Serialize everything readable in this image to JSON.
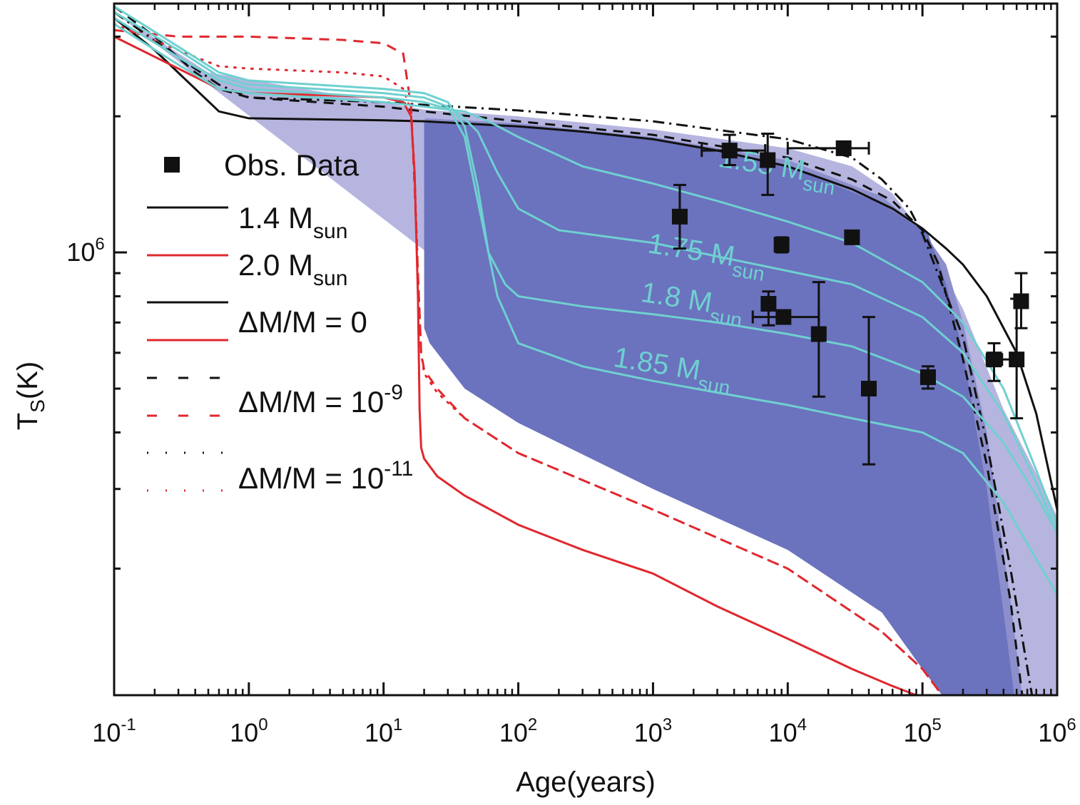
{
  "chart_data": {
    "type": "line",
    "title": "",
    "xlabel": "Age(years)",
    "ylabel_main": "T",
    "ylabel_sub": "S",
    "ylabel_unit": "(K)",
    "xscale": "log",
    "yscale": "log",
    "xlim": [
      0.1,
      1000000
    ],
    "ylim": [
      105000,
      3550000
    ],
    "grid": false,
    "legend_position": "left",
    "x_ticks": [
      {
        "value": 0.1,
        "base": "10",
        "exp": "-1"
      },
      {
        "value": 1,
        "base": "10",
        "exp": "0"
      },
      {
        "value": 10,
        "base": "10",
        "exp": "1"
      },
      {
        "value": 100,
        "base": "10",
        "exp": "2"
      },
      {
        "value": 1000,
        "base": "10",
        "exp": "3"
      },
      {
        "value": 10000,
        "base": "10",
        "exp": "4"
      },
      {
        "value": 100000,
        "base": "10",
        "exp": "5"
      },
      {
        "value": 1000000,
        "base": "10",
        "exp": "6"
      }
    ],
    "y_ticks": [
      {
        "value": 1000000,
        "base": "10",
        "exp": "6"
      }
    ],
    "colors": {
      "black": "#111111",
      "red": "#e0282e",
      "cyan": "#6fd0d0",
      "band_dark": "#6b72be",
      "band_mid": "#8c8fcc",
      "band_light": "#b6b5e0"
    },
    "legend": [
      {
        "label": "Obs. Data",
        "sub": "",
        "marker": "square",
        "color": "#111111",
        "dash": ""
      },
      {
        "label": "1.4 M",
        "sub": "sun",
        "color": "#111111",
        "dash": "solid"
      },
      {
        "label": "2.0 M",
        "sub": "sun",
        "color": "#e0282e",
        "dash": "solid"
      },
      {
        "label": "ΔM/M = 0",
        "sup": "",
        "colors": [
          "#111111",
          "#e0282e"
        ],
        "dash": "solid"
      },
      {
        "label": "ΔM/M = 10",
        "sup": "-9",
        "colors": [
          "#111111",
          "#e0282e"
        ],
        "dash": "dashed"
      },
      {
        "label": "ΔM/M = 10",
        "sup": "-11",
        "colors": [
          "#111111",
          "#e0282e"
        ],
        "dash": "dotted"
      }
    ],
    "annotations": [
      {
        "text": "1.55 M",
        "sub": "sun",
        "x": 3000,
        "y": 1550000
      },
      {
        "text": "1.75 M",
        "sub": "sun",
        "x": 900,
        "y": 1000000
      },
      {
        "text": "1.8 M",
        "sub": "sun",
        "x": 800,
        "y": 780000
      },
      {
        "text": "1.85 M",
        "sub": "sun",
        "x": 500,
        "y": 560000
      }
    ],
    "bands": [
      {
        "name": "light",
        "color": "#b6b5e0",
        "upper": [
          [
            0.1,
            3400000.0
          ],
          [
            0.5,
            2500000.0
          ],
          [
            20,
            2070000.0
          ],
          [
            100,
            2000000.0
          ],
          [
            1000,
            1870000.0
          ],
          [
            10000,
            1700000.0
          ],
          [
            30000,
            1550000.0
          ],
          [
            60000,
            1350000.0
          ],
          [
            100000,
            1100000.0
          ],
          [
            200000,
            750000.0
          ],
          [
            400000,
            450000.0
          ],
          [
            800000,
            300000.0
          ],
          [
            1000000,
            260000.0
          ]
        ],
        "lower": [
          [
            1000000,
            105000.0
          ],
          [
            600000,
            105000.0
          ],
          [
            400000,
            105000.0
          ]
        ]
      },
      {
        "name": "mid",
        "color": "#8c8fcc",
        "upper": [
          [
            20,
            1980000.0
          ],
          [
            100,
            1930000.0
          ],
          [
            1000,
            1800000.0
          ],
          [
            10000,
            1600000.0
          ],
          [
            50000,
            1330000.0
          ],
          [
            100000,
            1120000.0
          ],
          [
            150000,
            940000.0
          ],
          [
            200000,
            700000.0
          ],
          [
            300000,
            400000.0
          ],
          [
            450000,
            170000.0
          ],
          [
            550000,
            105000.0
          ]
        ],
        "lower": [
          [
            400000,
            105000.0
          ]
        ]
      },
      {
        "name": "dark",
        "color": "#6b72be",
        "upper": [
          [
            20,
            1940000.0
          ],
          [
            100,
            1900000.0
          ],
          [
            1000,
            1780000.0
          ],
          [
            10000,
            1550000.0
          ],
          [
            50000,
            1280000.0
          ],
          [
            110000,
            1100000.0
          ],
          [
            150000,
            850000.0
          ],
          [
            200000,
            600000.0
          ],
          [
            300000,
            300000.0
          ],
          [
            400000,
            160000.0
          ],
          [
            480000,
            105000.0
          ]
        ],
        "lower": [
          [
            140000,
            105000.0
          ],
          [
            100000,
            120000.0
          ],
          [
            50000,
            160000.0
          ],
          [
            10000,
            220000.0
          ],
          [
            1000,
            300000.0
          ],
          [
            100,
            420000.0
          ],
          [
            40,
            500000.0
          ],
          [
            22,
            630000.0
          ],
          [
            20,
            680000.0
          ]
        ]
      }
    ],
    "series": [
      {
        "name": "1.4 Msun dM/M=0",
        "color": "#111111",
        "dash": "solid",
        "x": [
          0.1,
          0.2,
          0.4,
          0.6,
          1,
          3,
          10,
          20,
          50,
          100,
          300,
          1000,
          3000,
          10000,
          30000,
          60000,
          100000,
          150000,
          200000,
          300000,
          500000,
          700000,
          1000000
        ],
        "y": [
          3300000.0,
          2800000.0,
          2300000.0,
          2050000.0,
          1980000.0,
          1970000.0,
          1960000.0,
          1950000.0,
          1920000.0,
          1900000.0,
          1850000.0,
          1780000.0,
          1680000.0,
          1550000.0,
          1380000.0,
          1250000.0,
          1130000.0,
          1020000.0,
          940000.0,
          800000.0,
          600000.0,
          440000.0,
          270000.0
        ]
      },
      {
        "name": "1.4 Msun dM/M=1e-9",
        "color": "#111111",
        "dash": "dashed",
        "x": [
          0.1,
          0.2,
          0.4,
          0.6,
          1,
          10,
          20,
          100,
          1000,
          10000,
          30000,
          60000,
          100000,
          130000,
          160000,
          200000,
          300000,
          450000,
          550000
        ],
        "y": [
          3500000.0,
          3000000.0,
          2500000.0,
          2300000.0,
          2200000.0,
          2100000.0,
          2050000.0,
          1950000.0,
          1820000.0,
          1620000.0,
          1450000.0,
          1300000.0,
          1120000.0,
          950000.0,
          750000.0,
          580000.0,
          340000.0,
          170000.0,
          105000.0
        ]
      },
      {
        "name": "1.4 Msun dM/M=1e-11 (dash-dot)",
        "color": "#111111",
        "dash": "dashdot",
        "x": [
          0.1,
          0.3,
          0.6,
          1,
          10,
          20,
          100,
          1000,
          10000,
          30000,
          50000,
          80000,
          100000,
          140000,
          200000,
          300000,
          450000,
          650000
        ],
        "y": [
          3400000.0,
          2700000.0,
          2350000.0,
          2200000.0,
          2150000.0,
          2120000.0,
          2060000.0,
          1950000.0,
          1780000.0,
          1620000.0,
          1450000.0,
          1250000.0,
          1100000.0,
          850000.0,
          650000.0,
          380000.0,
          200000.0,
          105000.0
        ]
      },
      {
        "name": "2.0 Msun dM/M=0",
        "color": "#e0282e",
        "dash": "solid",
        "x": [
          0.1,
          0.3,
          0.6,
          1,
          5,
          10,
          14,
          16,
          17,
          18,
          18.5,
          19,
          20,
          25,
          40,
          100,
          300,
          1000,
          3000,
          10000,
          30000,
          60000,
          90000
        ],
        "y": [
          3000000.0,
          2550000.0,
          2300000.0,
          2250000.0,
          2220000.0,
          2200000.0,
          2150000.0,
          2000000.0,
          1500000.0,
          800000.0,
          450000.0,
          370000.0,
          350000.0,
          320000.0,
          290000.0,
          250000.0,
          220000.0,
          195000.0,
          165000.0,
          140000.0,
          120000.0,
          110000.0,
          105000.0
        ]
      },
      {
        "name": "2.0 Msun dM/M=1e-9",
        "color": "#e0282e",
        "dash": "dashed",
        "x": [
          0.1,
          0.3,
          1,
          5,
          10,
          14,
          16,
          17,
          18,
          19,
          20,
          25,
          40,
          100,
          1000,
          10000,
          50000,
          100000,
          140000
        ],
        "y": [
          3100000.0,
          3000000.0,
          3000000.0,
          2950000.0,
          2900000.0,
          2750000.0,
          2100000.0,
          1400000.0,
          900000.0,
          600000.0,
          550000.0,
          500000.0,
          430000.0,
          360000.0,
          270000.0,
          200000.0,
          145000.0,
          120000.0,
          105000.0
        ]
      },
      {
        "name": "2.0 Msun dM/M=1e-11",
        "color": "#e0282e",
        "dash": "dotted",
        "x": [
          0.1,
          0.3,
          0.6,
          1,
          5,
          10,
          14,
          16,
          17,
          18,
          19,
          20,
          25,
          40,
          100,
          1000,
          10000,
          50000,
          100000,
          140000
        ],
        "y": [
          3200000.0,
          2800000.0,
          2580000.0,
          2550000.0,
          2500000.0,
          2450000.0,
          2300000.0,
          2050000.0,
          1500000.0,
          900000.0,
          600000.0,
          540000.0,
          490000.0,
          430000.0,
          360000.0,
          270000.0,
          200000.0,
          145000.0,
          120000.0,
          105000.0
        ]
      },
      {
        "name": "1.55 Msun",
        "color": "#6fd0d0",
        "dash": "solid",
        "x": [
          0.1,
          0.3,
          0.6,
          1,
          10,
          20,
          40,
          60,
          100,
          300,
          1000,
          3000,
          10000,
          30000,
          100000,
          200000,
          400000,
          700000,
          1000000
        ],
        "y": [
          3200000.0,
          2600000.0,
          2300000.0,
          2250000.0,
          2150000.0,
          2100000.0,
          2050000.0,
          1950000.0,
          1800000.0,
          1550000.0,
          1420000.0,
          1300000.0,
          1170000.0,
          1050000.0,
          860000.0,
          700000.0,
          500000.0,
          330000.0,
          250000.0
        ]
      },
      {
        "name": "1.75 Msun",
        "color": "#6fd0d0",
        "dash": "solid",
        "x": [
          0.1,
          0.3,
          0.6,
          1,
          10,
          20,
          35,
          50,
          70,
          100,
          200,
          1000,
          3000,
          10000,
          30000,
          100000,
          200000,
          400000,
          700000,
          1000000
        ],
        "y": [
          3300000.0,
          2700000.0,
          2400000.0,
          2300000.0,
          2200000.0,
          2150000.0,
          2050000.0,
          1850000.0,
          1500000.0,
          1250000.0,
          1120000.0,
          1050000.0,
          980000.0,
          910000.0,
          850000.0,
          720000.0,
          600000.0,
          440000.0,
          310000.0,
          240000.0
        ]
      },
      {
        "name": "1.8 Msun",
        "color": "#6fd0d0",
        "dash": "solid",
        "x": [
          0.1,
          0.3,
          0.6,
          1,
          10,
          20,
          30,
          40,
          50,
          60,
          80,
          100,
          300,
          1000,
          3000,
          10000,
          30000,
          100000,
          200000,
          400000,
          700000,
          1000000
        ],
        "y": [
          3400000.0,
          2800000.0,
          2450000.0,
          2350000.0,
          2250000.0,
          2200000.0,
          2100000.0,
          1800000.0,
          1300000.0,
          1000000.0,
          850000.0,
          800000.0,
          760000.0,
          730000.0,
          700000.0,
          660000.0,
          620000.0,
          540000.0,
          480000.0,
          380000.0,
          290000.0,
          240000.0
        ]
      },
      {
        "name": "1.85 Msun",
        "color": "#6fd0d0",
        "dash": "solid",
        "x": [
          0.1,
          0.3,
          0.6,
          1,
          10,
          20,
          30,
          40,
          50,
          60,
          70,
          100,
          300,
          1000,
          3000,
          10000,
          30000,
          100000,
          200000,
          400000,
          700000,
          1000000
        ],
        "y": [
          3500000.0,
          2850000.0,
          2500000.0,
          2400000.0,
          2300000.0,
          2250000.0,
          2150000.0,
          1900000.0,
          1400000.0,
          1000000.0,
          800000.0,
          630000.0,
          560000.0,
          520000.0,
          490000.0,
          460000.0,
          430000.0,
          400000.0,
          360000.0,
          280000.0,
          210000.0,
          175000.0
        ]
      }
    ],
    "observations": [
      {
        "x": 1580,
        "y": 1200000,
        "yerr_low": 1020000,
        "yerr_high": 1410000,
        "xerr_low": null,
        "xerr_high": null
      },
      {
        "x": 3700,
        "y": 1680000,
        "yerr_low": 1560000,
        "yerr_high": 1820000,
        "xerr_low": 2300,
        "xerr_high": 6800
      },
      {
        "x": 7100,
        "y": 1600000,
        "yerr_low": 1340000,
        "yerr_high": 1830000,
        "xerr_low": null,
        "xerr_high": null
      },
      {
        "x": 9000,
        "y": 1040000,
        "yerr_low": 1000000,
        "yerr_high": 1080000,
        "xerr_low": 8300,
        "xerr_high": 9800
      },
      {
        "x": 26000,
        "y": 1700000,
        "yerr_low": null,
        "yerr_high": null,
        "xerr_low": 10000,
        "xerr_high": 40000
      },
      {
        "x": 30000,
        "y": 1080000,
        "yerr_low": null,
        "yerr_high": null,
        "xerr_low": null,
        "xerr_high": null
      },
      {
        "x": 7200,
        "y": 770000,
        "yerr_low": 690000,
        "yerr_high": 820000,
        "xerr_low": null,
        "xerr_high": null
      },
      {
        "x": 9300,
        "y": 720000,
        "yerr_low": null,
        "yerr_high": null,
        "xerr_low": 5500,
        "xerr_high": 17000
      },
      {
        "x": 17000,
        "y": 660000,
        "yerr_low": 480000,
        "yerr_high": 860000,
        "xerr_low": null,
        "xerr_high": null
      },
      {
        "x": 40000,
        "y": 500000,
        "yerr_low": 340000,
        "yerr_high": 720000,
        "xerr_low": null,
        "xerr_high": null
      },
      {
        "x": 110000,
        "y": 530000,
        "yerr_low": 500000,
        "yerr_high": 560000,
        "xerr_low": null,
        "xerr_high": null
      },
      {
        "x": 340000,
        "y": 580000,
        "yerr_low": 520000,
        "yerr_high": 630000,
        "xerr_low": 300000,
        "xerr_high": 390000
      },
      {
        "x": 500000,
        "y": 580000,
        "yerr_low": 430000,
        "yerr_high": 790000,
        "xerr_low": 380000,
        "xerr_high": null
      },
      {
        "x": 540000,
        "y": 780000,
        "yerr_low": 680000,
        "yerr_high": 900000,
        "xerr_low": null,
        "xerr_high": null
      }
    ]
  }
}
